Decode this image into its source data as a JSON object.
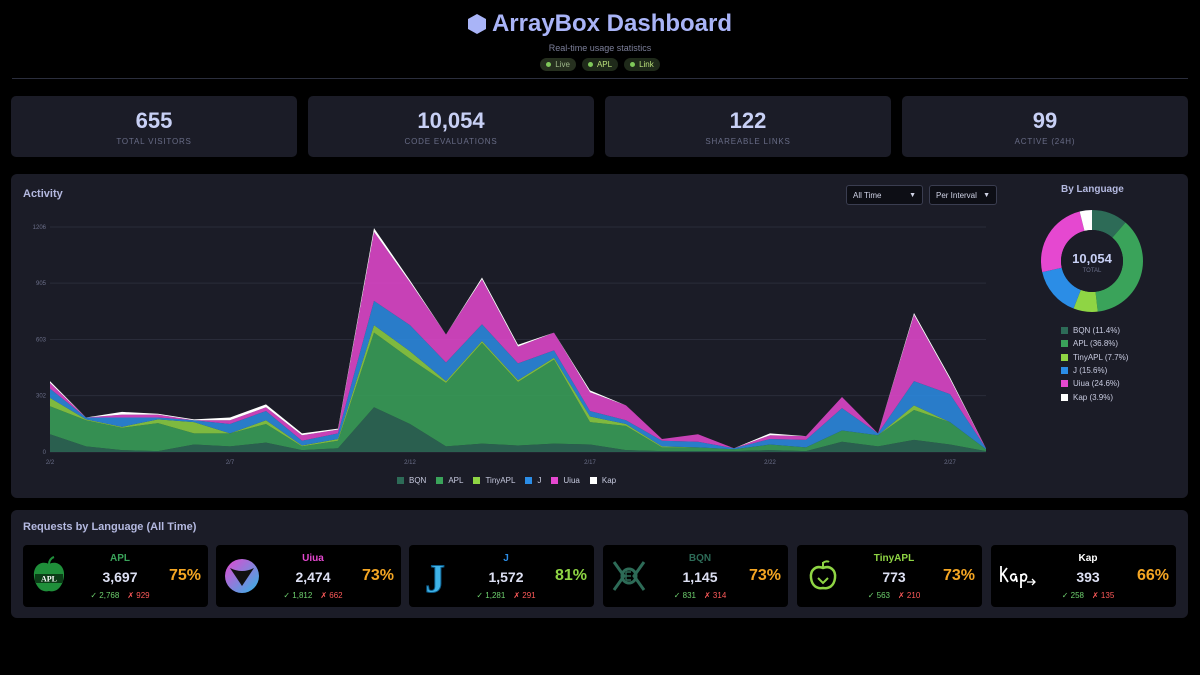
{
  "header": {
    "title": "ArrayBox Dashboard",
    "subtitle": "Real-time usage statistics",
    "badges": [
      "Live",
      "APL",
      "Link"
    ]
  },
  "stats": [
    {
      "value": "655",
      "label": "TOTAL VISITORS"
    },
    {
      "value": "10,054",
      "label": "CODE EVALUATIONS"
    },
    {
      "value": "122",
      "label": "SHAREABLE LINKS"
    },
    {
      "value": "99",
      "label": "ACTIVE (24H)"
    }
  ],
  "activity": {
    "title": "Activity",
    "range_select": "All Time",
    "interval_select": "Per Interval"
  },
  "colors": {
    "BQN": "#2d6b57",
    "APL": "#3aa35a",
    "TinyAPL": "#8fd544",
    "J": "#2b8de6",
    "Uiua": "#e548d0",
    "Kap": "#ffffff"
  },
  "chart_data": {
    "type": "area",
    "stacked": true,
    "x": [
      "2/2",
      "2/3",
      "2/4",
      "2/5",
      "2/6",
      "2/7",
      "2/8",
      "2/9",
      "2/10",
      "2/11",
      "2/12",
      "2/13",
      "2/14",
      "2/15",
      "2/16",
      "2/17",
      "2/18",
      "2/19",
      "2/20",
      "2/21",
      "2/22",
      "2/23",
      "2/24",
      "2/25",
      "2/26",
      "2/27",
      "2/28"
    ],
    "x_ticks": [
      "2/2",
      "2/7",
      "2/12",
      "2/17",
      "2/22",
      "2/27"
    ],
    "y_ticks": [
      0,
      302,
      603,
      905,
      1206
    ],
    "ylim": [
      0,
      1206
    ],
    "series": [
      {
        "name": "BQN",
        "values": [
          95,
          30,
          10,
          5,
          40,
          30,
          50,
          10,
          20,
          240,
          150,
          30,
          45,
          35,
          45,
          40,
          10,
          5,
          5,
          5,
          10,
          5,
          55,
          30,
          65,
          40,
          5
        ]
      },
      {
        "name": "APL",
        "values": [
          150,
          140,
          120,
          150,
          60,
          70,
          100,
          20,
          40,
          400,
          350,
          340,
          540,
          340,
          450,
          120,
          130,
          20,
          20,
          10,
          30,
          20,
          60,
          60,
          160,
          120,
          10
        ]
      },
      {
        "name": "TinyAPL",
        "values": [
          45,
          5,
          5,
          20,
          60,
          0,
          20,
          5,
          10,
          40,
          40,
          10,
          10,
          10,
          10,
          30,
          10,
          5,
          0,
          0,
          0,
          0,
          0,
          0,
          25,
          0,
          0
        ]
      },
      {
        "name": "J",
        "values": [
          50,
          10,
          50,
          10,
          10,
          50,
          50,
          25,
          30,
          130,
          140,
          100,
          90,
          90,
          40,
          30,
          20,
          30,
          30,
          5,
          30,
          40,
          120,
          10,
          130,
          150,
          5
        ]
      },
      {
        "name": "Uiua",
        "values": [
          30,
          0,
          15,
          15,
          0,
          20,
          20,
          30,
          20,
          370,
          230,
          150,
          240,
          90,
          95,
          100,
          80,
          10,
          40,
          0,
          20,
          20,
          60,
          0,
          355,
          80,
          0
        ]
      },
      {
        "name": "Kap",
        "values": [
          10,
          0,
          15,
          5,
          5,
          15,
          15,
          10,
          5,
          20,
          10,
          0,
          10,
          10,
          0,
          10,
          0,
          0,
          0,
          0,
          10,
          0,
          0,
          0,
          10,
          10,
          0
        ]
      }
    ],
    "legend": [
      "BQN",
      "APL",
      "TinyAPL",
      "J",
      "Uiua",
      "Kap"
    ]
  },
  "by_language": {
    "title": "By Language",
    "total": "10,054",
    "total_label": "TOTAL",
    "slices": [
      {
        "name": "BQN",
        "pct": 11.4,
        "label": "BQN (11.4%)"
      },
      {
        "name": "APL",
        "pct": 36.8,
        "label": "APL (36.8%)"
      },
      {
        "name": "TinyAPL",
        "pct": 7.7,
        "label": "TinyAPL (7.7%)"
      },
      {
        "name": "J",
        "pct": 15.6,
        "label": "J (15.6%)"
      },
      {
        "name": "Uiua",
        "pct": 24.6,
        "label": "Uiua (24.6%)"
      },
      {
        "name": "Kap",
        "pct": 3.9,
        "label": "Kap (3.9%)"
      }
    ]
  },
  "requests": {
    "title": "Requests by Language (All Time)",
    "cards": [
      {
        "name": "APL",
        "count": "3,697",
        "pct": "75%",
        "ok": "✓ 2,768",
        "fail": "✗ 929",
        "name_color": "#3aa35a",
        "pct_color": "#f5a623",
        "logo": "apl-logo-icon"
      },
      {
        "name": "Uiua",
        "count": "2,474",
        "pct": "73%",
        "ok": "✓ 1,812",
        "fail": "✗ 662",
        "name_color": "#e548d0",
        "pct_color": "#f5a623",
        "logo": "uiua-logo-icon"
      },
      {
        "name": "J",
        "count": "1,572",
        "pct": "81%",
        "ok": "✓ 1,281",
        "fail": "✗ 291",
        "name_color": "#2b8de6",
        "pct_color": "#8fd544",
        "logo": "j-logo-icon"
      },
      {
        "name": "BQN",
        "count": "1,145",
        "pct": "73%",
        "ok": "✓ 831",
        "fail": "✗ 314",
        "name_color": "#2d6b57",
        "pct_color": "#f5a623",
        "logo": "bqn-logo-icon"
      },
      {
        "name": "TinyAPL",
        "count": "773",
        "pct": "73%",
        "ok": "✓ 563",
        "fail": "✗ 210",
        "name_color": "#8fd544",
        "pct_color": "#f5a623",
        "logo": "tinyapl-logo-icon"
      },
      {
        "name": "Kap",
        "count": "393",
        "pct": "66%",
        "ok": "✓ 258",
        "fail": "✗ 135",
        "name_color": "#ffffff",
        "pct_color": "#f5a623",
        "logo": "kap-logo-icon"
      }
    ]
  }
}
